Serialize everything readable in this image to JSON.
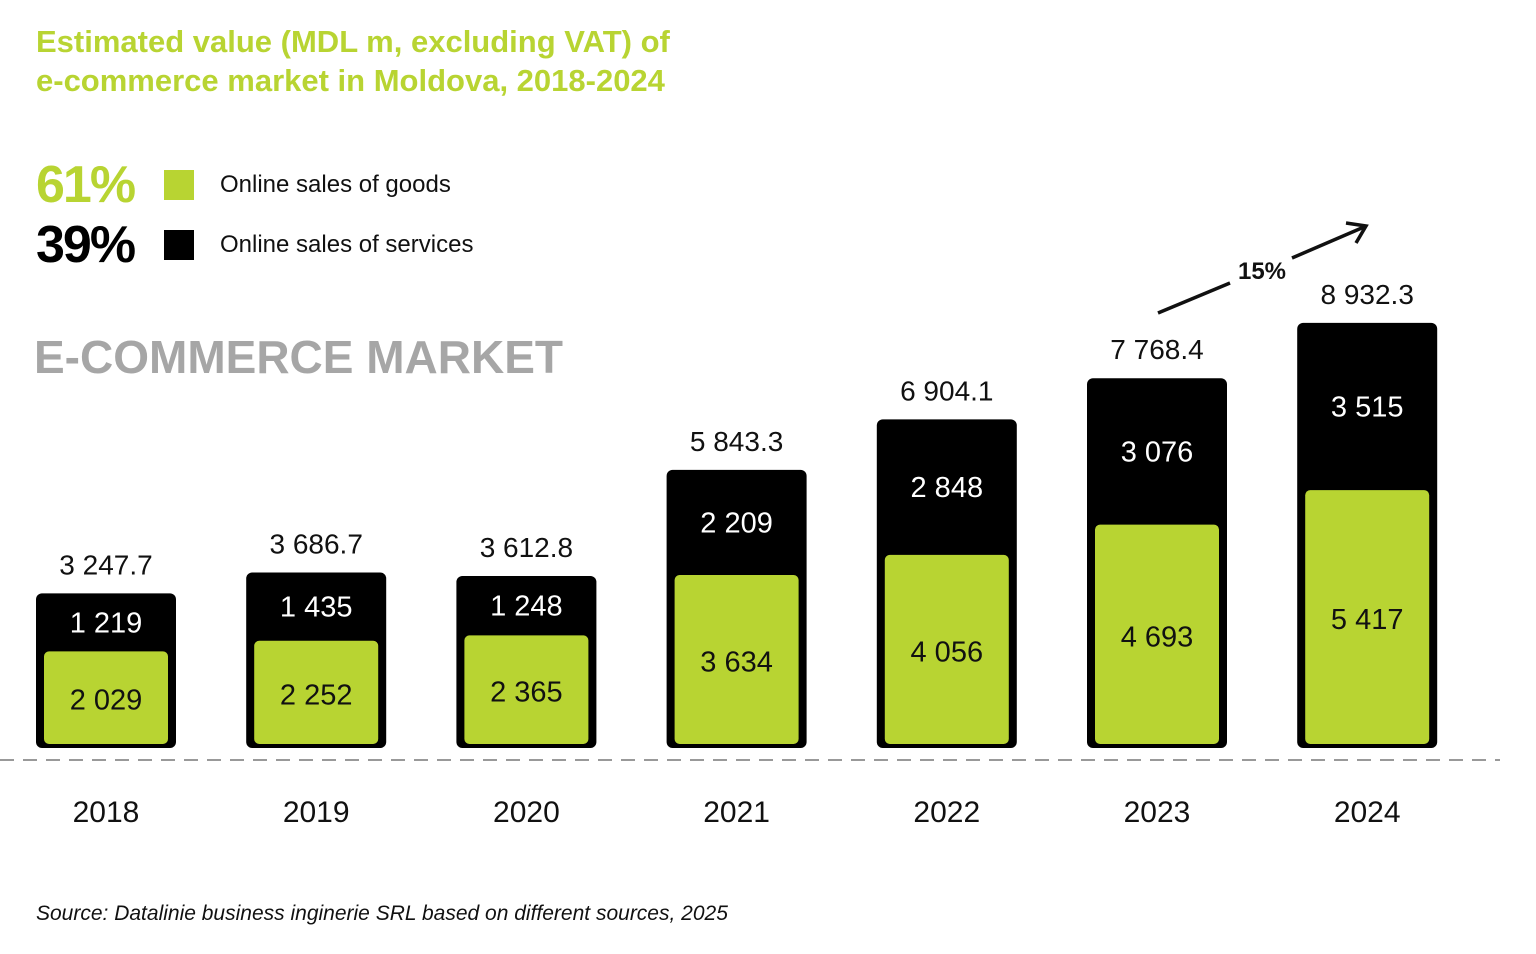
{
  "chart_data": {
    "type": "bar",
    "stacked": true,
    "title": "Estimated value (MDL m, excluding VAT) of e-commerce market in Moldova, 2018-2024",
    "title_lines": [
      "Estimated value (MDL m, excluding VAT) of",
      "e-commerce market in Moldova, 2018-2024"
    ],
    "subtitle": "E-COMMERCE MARKET",
    "categories": [
      "2018",
      "2019",
      "2020",
      "2021",
      "2022",
      "2023",
      "2024"
    ],
    "series": [
      {
        "name": "Online sales of goods",
        "share": "61%",
        "color": "#b8d432",
        "values": [
          2029,
          2252,
          2365,
          3634,
          4056,
          4693,
          5417
        ],
        "labels": [
          "2 029",
          "2 252",
          "2 365",
          "3 634",
          "4 056",
          "4 693",
          "5 417"
        ]
      },
      {
        "name": "Online sales of services",
        "share": "39%",
        "color": "#000000",
        "values": [
          1219,
          1435,
          1248,
          2209,
          2848,
          3076,
          3515
        ],
        "labels": [
          "1 219",
          "1 435",
          "1 248",
          "2 209",
          "2 848",
          "3 076",
          "3 515"
        ]
      }
    ],
    "totals": [
      3247.7,
      3686.7,
      3612.8,
      5843.3,
      6904.1,
      7768.4,
      8932.3
    ],
    "total_labels": [
      "3 247.7",
      "3 686.7",
      "3 612.8",
      "5 843.3",
      "6 904.1",
      "7 768.4",
      "8 932.3"
    ],
    "annotation": {
      "text": "15%",
      "from": "2023",
      "to": "2024"
    },
    "grid": false,
    "legend_placement": "top-left",
    "source": "Source: Datalinie business inginerie SRL based on different sources, 2025"
  }
}
